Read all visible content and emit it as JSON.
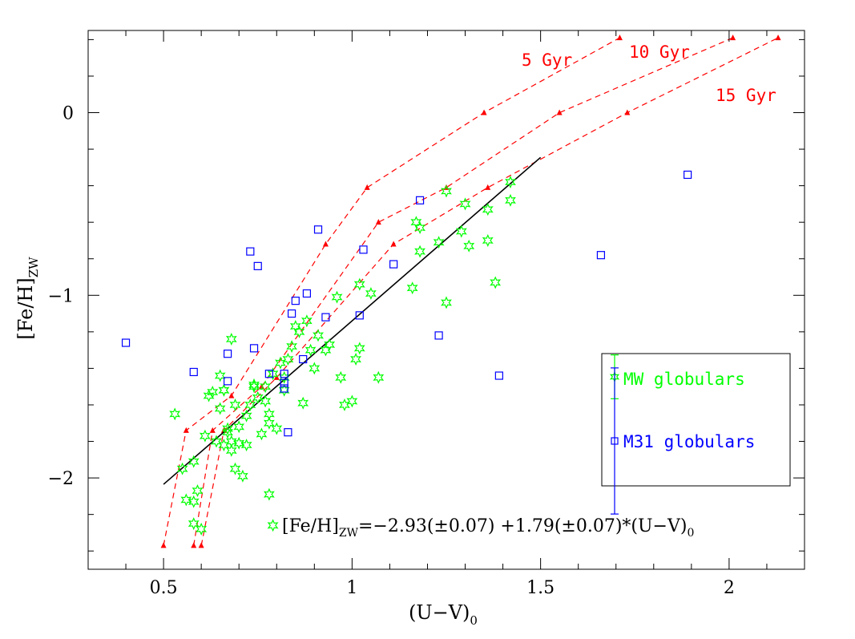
{
  "chart_data": {
    "type": "scatter",
    "xlabel": "(U−V)",
    "xlabel_sub": "0",
    "ylabel": "[Fe/H]",
    "ylabel_sub": "ZW",
    "xlim": [
      0.3,
      2.2
    ],
    "ylim": [
      -2.5,
      0.45
    ],
    "x_ticks": [
      {
        "value": 0.5,
        "label": "0.5"
      },
      {
        "value": 1.0,
        "label": "1"
      },
      {
        "value": 1.5,
        "label": "1.5"
      },
      {
        "value": 2.0,
        "label": "2"
      }
    ],
    "y_ticks": [
      {
        "value": 0,
        "label": "0"
      },
      {
        "value": -1,
        "label": "−1"
      },
      {
        "value": -2,
        "label": "−2"
      }
    ],
    "fit": {
      "label_lhs": "[Fe/H]",
      "label_sub": "ZW",
      "label_rhs": "=−2.93(±0.07)  +1.79(±0.07)*(U−V)",
      "label_end_sub": "0",
      "intercept": -2.93,
      "slope": 1.79,
      "x_range": [
        0.5,
        1.5
      ],
      "color": "#000000"
    },
    "legend": {
      "placement": "bottom-right",
      "entries": [
        {
          "label": "MW globulars",
          "marker": "star",
          "color": "#00ff00",
          "errbar": 0.12
        },
        {
          "label": "M31 globulars",
          "marker": "square",
          "color": "#0000ff",
          "errbar": 0.4
        }
      ]
    },
    "series": [
      {
        "name": "MW globulars",
        "marker": "star",
        "color": "#00ff00",
        "points": [
          [
            0.53,
            -1.65
          ],
          [
            0.55,
            -1.95
          ],
          [
            0.56,
            -2.12
          ],
          [
            0.58,
            -2.13
          ],
          [
            0.58,
            -1.91
          ],
          [
            0.59,
            -2.07
          ],
          [
            0.58,
            -2.25
          ],
          [
            0.6,
            -2.28
          ],
          [
            0.61,
            -1.77
          ],
          [
            0.62,
            -1.55
          ],
          [
            0.63,
            -1.53
          ],
          [
            0.64,
            -1.8
          ],
          [
            0.65,
            -1.62
          ],
          [
            0.65,
            -1.44
          ],
          [
            0.66,
            -1.52
          ],
          [
            0.66,
            -1.82
          ],
          [
            0.67,
            -1.75
          ],
          [
            0.68,
            -1.85
          ],
          [
            0.68,
            -1.8
          ],
          [
            0.69,
            -1.95
          ],
          [
            0.69,
            -1.6
          ],
          [
            0.7,
            -1.72
          ],
          [
            0.7,
            -1.81
          ],
          [
            0.71,
            -1.99
          ],
          [
            0.72,
            -1.82
          ],
          [
            0.72,
            -1.66
          ],
          [
            0.73,
            -1.6
          ],
          [
            0.74,
            -1.49
          ],
          [
            0.74,
            -1.5
          ],
          [
            0.76,
            -1.76
          ],
          [
            0.77,
            -1.58
          ],
          [
            0.78,
            -1.65
          ],
          [
            0.78,
            -1.7
          ],
          [
            0.79,
            -1.43
          ],
          [
            0.8,
            -1.73
          ],
          [
            0.81,
            -1.37
          ],
          [
            0.82,
            -1.52
          ],
          [
            0.83,
            -1.35
          ],
          [
            0.84,
            -1.28
          ],
          [
            0.85,
            -1.17
          ],
          [
            0.86,
            -1.2
          ],
          [
            0.87,
            -1.59
          ],
          [
            0.88,
            -1.14
          ],
          [
            0.89,
            -1.3
          ],
          [
            0.9,
            -1.4
          ],
          [
            0.91,
            -1.22
          ],
          [
            0.93,
            -1.3
          ],
          [
            0.94,
            -1.27
          ],
          [
            0.96,
            -1.01
          ],
          [
            0.97,
            -1.45
          ],
          [
            0.98,
            -1.6
          ],
          [
            1.0,
            -1.58
          ],
          [
            1.01,
            -1.35
          ],
          [
            1.02,
            -1.29
          ],
          [
            1.02,
            -0.94
          ],
          [
            1.05,
            -0.99
          ],
          [
            1.07,
            -1.45
          ],
          [
            1.16,
            -0.96
          ],
          [
            1.17,
            -0.6
          ],
          [
            1.18,
            -0.63
          ],
          [
            1.18,
            -0.76
          ],
          [
            1.23,
            -0.71
          ],
          [
            1.25,
            -1.04
          ],
          [
            1.25,
            -0.43
          ],
          [
            1.29,
            -0.65
          ],
          [
            1.3,
            -0.5
          ],
          [
            1.31,
            -0.73
          ],
          [
            1.36,
            -0.53
          ],
          [
            1.36,
            -0.7
          ],
          [
            1.38,
            -0.93
          ],
          [
            1.42,
            -0.38
          ],
          [
            1.42,
            -0.48
          ],
          [
            0.78,
            -2.09
          ],
          [
            0.79,
            -2.26
          ],
          [
            0.67,
            -1.73
          ],
          [
            0.68,
            -1.24
          ],
          [
            0.66,
            -1.52
          ],
          [
            0.75,
            -1.56
          ],
          [
            0.77,
            -1.5
          ],
          [
            0.82,
            -1.45
          ]
        ]
      },
      {
        "name": "M31 globulars",
        "marker": "square",
        "color": "#0000ff",
        "points": [
          [
            0.4,
            -1.26
          ],
          [
            0.58,
            -1.42
          ],
          [
            0.67,
            -1.32
          ],
          [
            0.67,
            -1.47
          ],
          [
            0.73,
            -0.76
          ],
          [
            0.74,
            -1.29
          ],
          [
            0.75,
            -0.84
          ],
          [
            0.78,
            -1.43
          ],
          [
            0.82,
            -1.43
          ],
          [
            0.82,
            -1.48
          ],
          [
            0.82,
            -1.51
          ],
          [
            0.83,
            -1.75
          ],
          [
            0.84,
            -1.1
          ],
          [
            0.85,
            -1.03
          ],
          [
            0.87,
            -1.35
          ],
          [
            0.88,
            -0.99
          ],
          [
            0.91,
            -0.64
          ],
          [
            0.93,
            -1.12
          ],
          [
            1.02,
            -1.11
          ],
          [
            1.03,
            -0.75
          ],
          [
            1.11,
            -0.83
          ],
          [
            1.18,
            -0.48
          ],
          [
            1.23,
            -1.22
          ],
          [
            1.39,
            -1.44
          ],
          [
            1.66,
            -0.78
          ],
          [
            1.89,
            -0.34
          ]
        ]
      }
    ],
    "isochrones": {
      "color": "#ff0000",
      "style": "dashed",
      "tracks": [
        {
          "label": "5 Gyr",
          "points": [
            [
              0.5,
              -2.37
            ],
            [
              0.56,
              -1.74
            ],
            [
              0.68,
              -1.55
            ],
            [
              0.93,
              -0.72
            ],
            [
              1.04,
              -0.41
            ],
            [
              1.35,
              0.0
            ],
            [
              1.71,
              0.41
            ]
          ]
        },
        {
          "label": "10 Gyr",
          "points": [
            [
              0.58,
              -2.37
            ],
            [
              0.63,
              -1.74
            ],
            [
              0.76,
              -1.5
            ],
            [
              1.07,
              -0.6
            ],
            [
              1.25,
              -0.41
            ],
            [
              1.55,
              0.0
            ],
            [
              2.01,
              0.41
            ]
          ]
        },
        {
          "label": "15 Gyr",
          "points": [
            [
              0.6,
              -2.37
            ],
            [
              0.66,
              -1.74
            ],
            [
              0.8,
              -1.45
            ],
            [
              1.11,
              -0.72
            ],
            [
              1.36,
              -0.41
            ],
            [
              1.73,
              0.0
            ],
            [
              2.13,
              0.41
            ]
          ]
        }
      ]
    }
  }
}
